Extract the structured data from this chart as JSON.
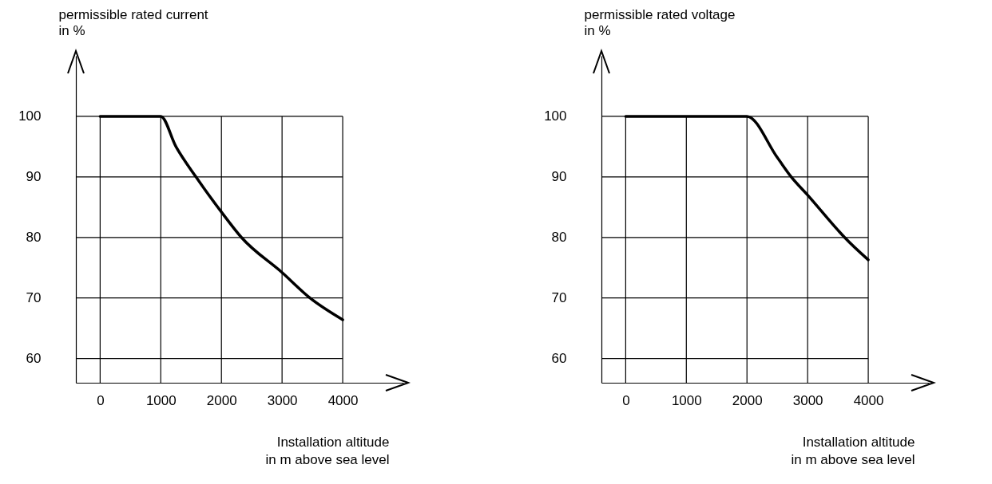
{
  "chart_data": [
    {
      "type": "line",
      "ylabel": "permissible rated current\nin %",
      "xlabel": "Installation altitude\nin m above sea level",
      "x": [
        0,
        1000,
        1250,
        1580,
        2000,
        2330,
        3000,
        3460,
        4000
      ],
      "series": [
        {
          "color": "#000000",
          "values": [
            100,
            100,
            95.0,
            90,
            84.2,
            80,
            74.2,
            70,
            66.4
          ]
        }
      ],
      "xlim": [
        -400,
        5000
      ],
      "ylim": [
        56,
        110
      ],
      "xticks": [
        0,
        1000,
        2000,
        3000,
        4000
      ],
      "yticks": [
        60,
        70,
        80,
        90,
        100
      ],
      "grid": true
    },
    {
      "type": "line",
      "ylabel": "permissible rated voltage\nin %",
      "xlabel": "Installation altitude\nin m above sea level",
      "x": [
        0,
        2000,
        2500,
        2730,
        3000,
        3500,
        3610,
        4000
      ],
      "series": [
        {
          "color": "#000000",
          "values": [
            100,
            100,
            93.2,
            90,
            87.0,
            81.2,
            80,
            76.3
          ]
        }
      ],
      "xlim": [
        -400,
        5000
      ],
      "ylim": [
        56,
        110
      ],
      "xticks": [
        0,
        1000,
        2000,
        3000,
        4000
      ],
      "yticks": [
        60,
        70,
        80,
        90,
        100
      ],
      "grid": true
    }
  ]
}
